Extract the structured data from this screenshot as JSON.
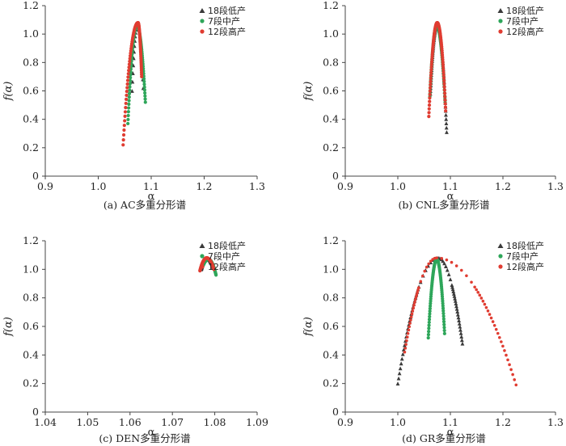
{
  "legend_labels": [
    "18段低产",
    "7段中产",
    "12段高产"
  ],
  "series_colors": [
    "#3a3a3a",
    "#2ea65a",
    "#e03c31"
  ],
  "x_label": "α",
  "y_label": "f(α)",
  "chart_data": [
    {
      "type": "scatter",
      "caption": "(a)  AC多重分形谱",
      "xlim": [
        0.9,
        1.3
      ],
      "ylim": [
        0,
        1.2
      ],
      "xticks": [
        "0.9",
        "1.0",
        "1.1",
        "1.2",
        "1.3"
      ],
      "yticks": [
        "0",
        "0.2",
        "0.4",
        "0.6",
        "0.8",
        "1.0",
        "1.2"
      ],
      "legend_position": "top-right",
      "series": [
        {
          "name": "18段低产",
          "marker": "triangle",
          "style": "sparse",
          "left": [
            1.064,
            0.6
          ],
          "apex": [
            1.074,
            1.07
          ],
          "right": [
            1.085,
            0.62
          ]
        },
        {
          "name": "7段中产",
          "marker": "dot",
          "style": "dense",
          "left": [
            1.056,
            0.37
          ],
          "apex": [
            1.073,
            1.06
          ],
          "right": [
            1.089,
            0.52
          ]
        },
        {
          "name": "12段高产",
          "marker": "dot",
          "style": "dense",
          "left": [
            1.047,
            0.22
          ],
          "apex": [
            1.075,
            1.08
          ],
          "right": [
            1.082,
            0.7
          ]
        }
      ]
    },
    {
      "type": "scatter",
      "caption": "(b)  CNL多重分形谱",
      "xlim": [
        0.9,
        1.3
      ],
      "ylim": [
        0,
        1.2
      ],
      "xticks": [
        "0.9",
        "1.0",
        "1.1",
        "1.2",
        "1.3"
      ],
      "yticks": [
        "0",
        "0.2",
        "0.4",
        "0.6",
        "0.8",
        "1.0",
        "1.2"
      ],
      "legend_position": "top-right",
      "series": [
        {
          "name": "18段低产",
          "marker": "triangle",
          "style": "dense",
          "left": [
            1.062,
            0.58
          ],
          "apex": [
            1.075,
            1.07
          ],
          "right": [
            1.093,
            0.31
          ]
        },
        {
          "name": "7段中产",
          "marker": "dot",
          "style": "dense",
          "left": [
            1.061,
            0.56
          ],
          "apex": [
            1.074,
            1.06
          ],
          "right": [
            1.09,
            0.52
          ]
        },
        {
          "name": "12段高产",
          "marker": "dot",
          "style": "dense",
          "left": [
            1.059,
            0.42
          ],
          "apex": [
            1.075,
            1.08
          ],
          "right": [
            1.091,
            0.46
          ]
        }
      ]
    },
    {
      "type": "scatter",
      "caption": "(c)  DEN多重分形谱",
      "xlim": [
        1.04,
        1.09
      ],
      "ylim": [
        0,
        1.2
      ],
      "xticks": [
        "1.04",
        "1.05",
        "1.06",
        "1.07",
        "1.08",
        "1.09"
      ],
      "yticks": [
        "0",
        "0.2",
        "0.4",
        "0.6",
        "0.8",
        "1.0",
        "1.2"
      ],
      "legend_position": "top-right",
      "series": [
        {
          "name": "18段低产",
          "marker": "triangle",
          "style": "dense",
          "left": [
            1.0768,
            1.0
          ],
          "apex": [
            1.0782,
            1.075
          ],
          "right": [
            1.0797,
            1.01
          ]
        },
        {
          "name": "7段中产",
          "marker": "dot",
          "style": "dense",
          "left": [
            1.0773,
            1.03
          ],
          "apex": [
            1.0785,
            1.07
          ],
          "right": [
            1.0803,
            0.96
          ]
        },
        {
          "name": "12段高产",
          "marker": "dot",
          "style": "dense",
          "left": [
            1.0765,
            0.99
          ],
          "apex": [
            1.0781,
            1.08
          ],
          "right": [
            1.0798,
            1.0
          ]
        }
      ]
    },
    {
      "type": "scatter",
      "caption": "(d)  GR多重分形谱",
      "xlim": [
        0.9,
        1.3
      ],
      "ylim": [
        0,
        1.2
      ],
      "xticks": [
        "0.9",
        "1.0",
        "1.1",
        "1.2",
        "1.3"
      ],
      "yticks": [
        "0",
        "0.2",
        "0.4",
        "0.6",
        "0.8",
        "1.0",
        "1.2"
      ],
      "legend_position": "top-right",
      "series": [
        {
          "name": "18段低产",
          "marker": "triangle",
          "style": "mixed",
          "left": [
            1.0,
            0.2
          ],
          "apex": [
            1.077,
            1.08
          ],
          "right": [
            1.123,
            0.48
          ]
        },
        {
          "name": "7段中产",
          "marker": "dot",
          "style": "dense",
          "left": [
            1.058,
            0.52
          ],
          "apex": [
            1.074,
            1.07
          ],
          "right": [
            1.089,
            0.55
          ]
        },
        {
          "name": "12段高产",
          "marker": "dot",
          "style": "mixed",
          "left": [
            1.013,
            0.42
          ],
          "apex": [
            1.074,
            1.08
          ],
          "right": [
            1.225,
            0.19
          ]
        }
      ]
    }
  ]
}
